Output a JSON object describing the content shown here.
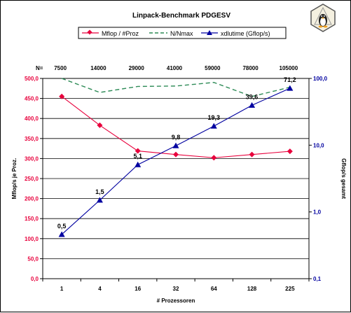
{
  "logo": {
    "name": "tux-penguin-icon"
  },
  "chart_data": {
    "type": "line",
    "title": "Linpack-Benchmark PDGESV",
    "xlabel": "# Prozessoren",
    "ylabel_left": "Mflop/s je Proz.",
    "ylabel_right": "Gflop/s gesamt",
    "categories": [
      "1",
      "4",
      "16",
      "32",
      "64",
      "128",
      "225"
    ],
    "n_prefix": "N=",
    "n_values": [
      "7500",
      "14000",
      "29000",
      "41000",
      "59000",
      "78000",
      "105000"
    ],
    "y_left": {
      "min": 0,
      "max": 500,
      "step": 50,
      "ticks": [
        "0,0",
        "50,0",
        "100,0",
        "150,0",
        "200,0",
        "250,0",
        "300,0",
        "350,0",
        "400,0",
        "450,0",
        "500,0"
      ]
    },
    "y_right": {
      "scale": "log",
      "min": 0.1,
      "max": 100,
      "ticks": [
        {
          "value": 0.1,
          "label": "0,1"
        },
        {
          "value": 1,
          "label": "1,0"
        },
        {
          "value": 10,
          "label": "10,0"
        },
        {
          "value": 100,
          "label": "100,0"
        }
      ]
    },
    "grid": true,
    "legend_position": "top",
    "series": [
      {
        "name": "Mflop / #Proz",
        "axis": "left",
        "color": "#e8003c",
        "marker": "diamond",
        "values": [
          455,
          383,
          319,
          310,
          302,
          310,
          318
        ]
      },
      {
        "name": "N/Nmax",
        "axis": "left",
        "color": "#2e8b57",
        "dashed": true,
        "values": [
          500,
          465,
          480,
          481,
          490,
          455,
          478
        ]
      },
      {
        "name": "xdlutime (Gflop/s)",
        "axis": "right",
        "color": "#0000a0",
        "marker": "triangle",
        "values": [
          0.46,
          1.5,
          5.1,
          9.8,
          19.3,
          39.6,
          71.2
        ],
        "labels": [
          "0,5",
          "1,5",
          "5,1",
          "9,8",
          "19,3",
          "39,6",
          "71,2"
        ]
      }
    ],
    "colors": {
      "axis_left": "#e8003c",
      "axis_right": "#0000a0",
      "grid": "#000000"
    }
  }
}
